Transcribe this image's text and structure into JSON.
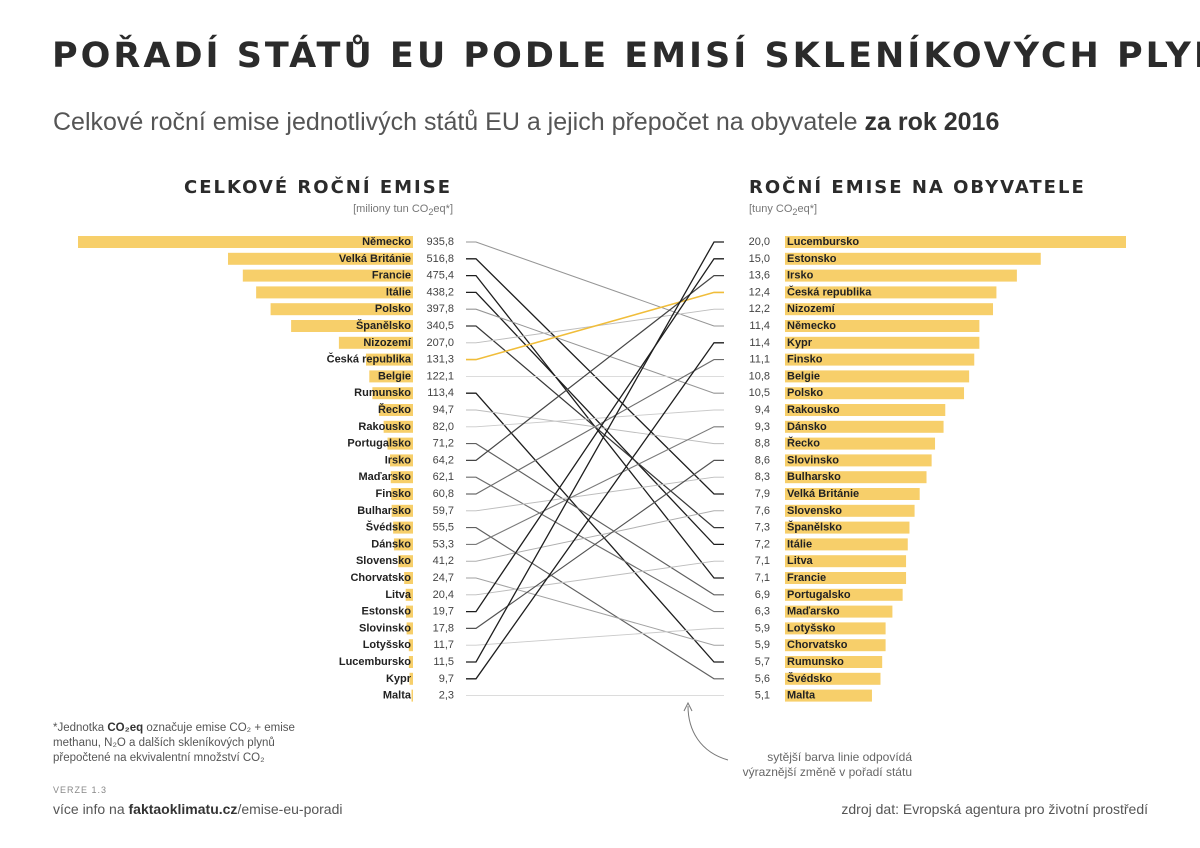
{
  "title": "POŘADÍ STÁTŮ EU PODLE EMISÍ SKLENÍKOVÝCH PLYNŮ",
  "subtitle": {
    "text": "Celkové roční emise jednotlivých států EU a jejich přepočet na obyvatele ",
    "emphasis": "za rok 2016"
  },
  "left_panel": {
    "title": "CELKOVÉ ROČNÍ EMISE",
    "unit_prefix": "[miliony tun CO",
    "unit_sub": "2",
    "unit_suffix": "eq*]"
  },
  "right_panel": {
    "title": "ROČNÍ EMISE NA OBYVATELE",
    "unit_prefix": "[tuny CO",
    "unit_sub": "2",
    "unit_suffix": "eq*]"
  },
  "note": {
    "prefix": "*Jednotka ",
    "bold": "CO₂eq",
    "text": " označuje emise CO₂ + emise methanu, N₂O a dalších skleníkových plynů přepočtené na ekvivalentní množství CO₂"
  },
  "version": "VERZE 1.3",
  "footer_left": {
    "prefix": "více info na ",
    "bold": "faktaoklimatu.cz",
    "suffix": "/emise-eu-poradi"
  },
  "footer_right": "zdroj dat: Evropská agentura pro životní prostředí",
  "annotation": "sytější barva linie odpovídá výraznější změně v pořadí státu",
  "colors": {
    "bar": "#f7cf6a",
    "highlight_line": "#f0bd3a",
    "text": "#222222"
  },
  "chart_data": {
    "type": "bar",
    "title": "POŘADÍ STÁTŮ EU PODLE EMISÍ SKLENÍKOVÝCH PLYNŮ",
    "highlight": "Česká republika",
    "total_emissions": {
      "label": "CELKOVÉ ROČNÍ EMISE",
      "unit": "miliony tun CO2eq",
      "categories": [
        "Německo",
        "Velká Británie",
        "Francie",
        "Itálie",
        "Polsko",
        "Španělsko",
        "Nizozemí",
        "Česká republika",
        "Belgie",
        "Rumunsko",
        "Řecko",
        "Rakousko",
        "Portugalsko",
        "Irsko",
        "Maďarsko",
        "Finsko",
        "Bulharsko",
        "Švédsko",
        "Dánsko",
        "Slovensko",
        "Chorvatsko",
        "Litva",
        "Estonsko",
        "Slovinsko",
        "Lotyšsko",
        "Lucembursko",
        "Kypr",
        "Malta"
      ],
      "values": [
        935.8,
        516.8,
        475.4,
        438.2,
        397.8,
        340.5,
        207.0,
        131.3,
        122.1,
        113.4,
        94.7,
        82.0,
        71.2,
        64.2,
        62.1,
        60.8,
        59.7,
        55.5,
        53.3,
        41.2,
        24.7,
        20.4,
        19.7,
        17.8,
        11.7,
        11.5,
        9.7,
        2.3
      ],
      "labels": [
        "935,8",
        "516,8",
        "475,4",
        "438,2",
        "397,8",
        "340,5",
        "207,0",
        "131,3",
        "122,1",
        "113,4",
        "94,7",
        "82,0",
        "71,2",
        "64,2",
        "62,1",
        "60,8",
        "59,7",
        "55,5",
        "53,3",
        "41,2",
        "24,7",
        "20,4",
        "19,7",
        "17,8",
        "11,7",
        "11,5",
        "9,7",
        "2,3"
      ]
    },
    "per_capita": {
      "label": "ROČNÍ EMISE NA OBYVATELE",
      "unit": "tuny CO2eq",
      "categories": [
        "Lucembursko",
        "Estonsko",
        "Irsko",
        "Česká republika",
        "Nizozemí",
        "Německo",
        "Kypr",
        "Finsko",
        "Belgie",
        "Polsko",
        "Rakousko",
        "Dánsko",
        "Řecko",
        "Slovinsko",
        "Bulharsko",
        "Velká Británie",
        "Slovensko",
        "Španělsko",
        "Itálie",
        "Litva",
        "Francie",
        "Portugalsko",
        "Maďarsko",
        "Lotyšsko",
        "Chorvatsko",
        "Rumunsko",
        "Švédsko",
        "Malta"
      ],
      "values": [
        20.0,
        15.0,
        13.6,
        12.4,
        12.2,
        11.4,
        11.4,
        11.1,
        10.8,
        10.5,
        9.4,
        9.3,
        8.8,
        8.6,
        8.3,
        7.9,
        7.6,
        7.3,
        7.2,
        7.1,
        7.1,
        6.9,
        6.3,
        5.9,
        5.9,
        5.7,
        5.6,
        5.1
      ],
      "labels": [
        "20,0",
        "15,0",
        "13,6",
        "12,4",
        "12,2",
        "11,4",
        "11,4",
        "11,1",
        "10,8",
        "10,5",
        "9,4",
        "9,3",
        "8,8",
        "8,6",
        "8,3",
        "7,9",
        "7,6",
        "7,3",
        "7,2",
        "7,1",
        "7,1",
        "6,9",
        "6,3",
        "5,9",
        "5,9",
        "5,7",
        "5,6",
        "5,1"
      ]
    }
  }
}
